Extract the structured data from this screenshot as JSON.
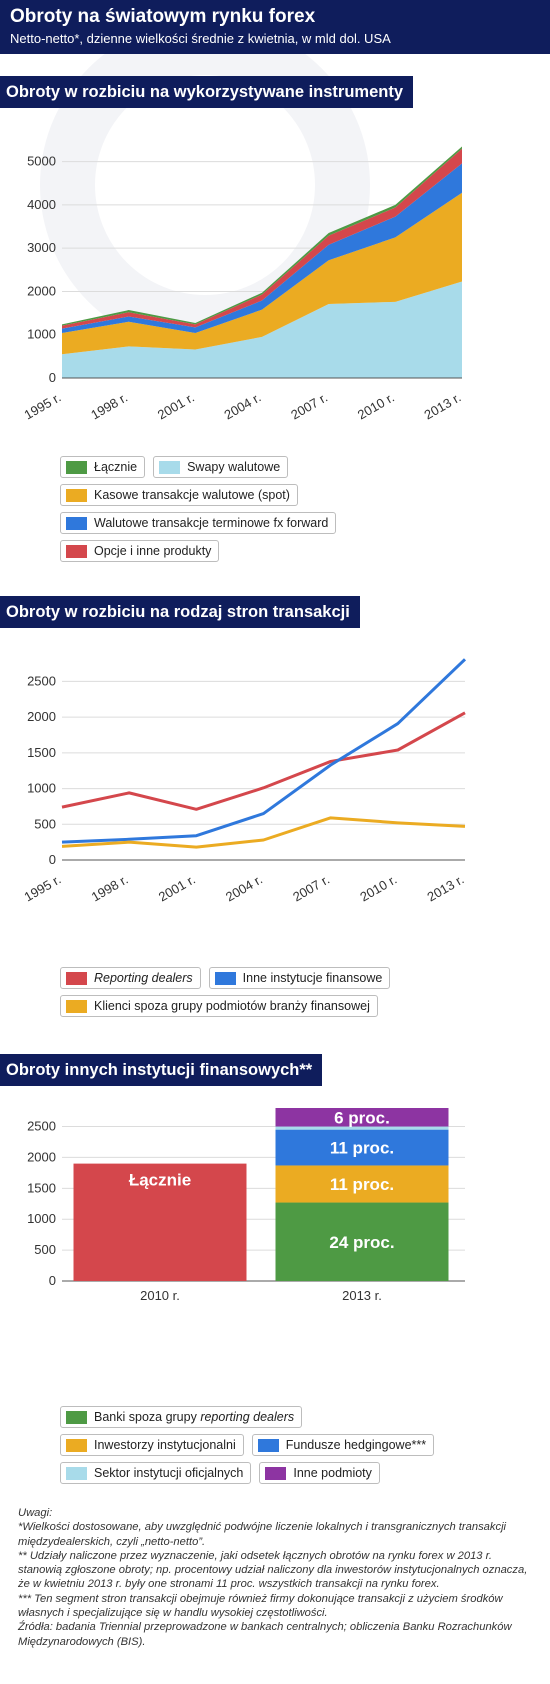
{
  "header": {
    "title": "Obroty na światowym rynku forex",
    "subtitle": "Netto-netto*, dzienne wielkości średnie z kwietnia, w mld dol. USA"
  },
  "section1": {
    "title": "Obroty w rozbiciu na wykorzystywane instrumenty"
  },
  "section2": {
    "title": "Obroty w rozbiciu na rodzaj stron transakcji"
  },
  "section3": {
    "title": "Obroty innych instytucji finansowych**"
  },
  "colors": {
    "navy": "#0f1d5c",
    "green": "#4e9a44",
    "light_blue": "#a8dbea",
    "orange": "#ebab22",
    "blue": "#2f78dc",
    "red": "#d4474c",
    "purple": "#8d34a2"
  },
  "chart_data": [
    {
      "type": "area",
      "x": [
        "1995 r.",
        "1998 r.",
        "2001 r.",
        "2004 r.",
        "2007 r.",
        "2010 r.",
        "2013 r."
      ],
      "ylim": [
        0,
        5500
      ],
      "yticks": [
        0,
        1000,
        2000,
        3000,
        4000,
        5000
      ],
      "stacked": true,
      "series": [
        {
          "name": "Swapy walutowe",
          "color": "#a8dbea",
          "values": [
            550,
            730,
            660,
            950,
            1710,
            1760,
            2230
          ]
        },
        {
          "name": "Kasowe transakcje walutowe (spot)",
          "color": "#ebab22",
          "values": [
            490,
            570,
            380,
            630,
            1010,
            1490,
            2050
          ]
        },
        {
          "name": "Walutowe transakcje terminowe fx forward",
          "color": "#2f78dc",
          "values": [
            100,
            120,
            130,
            210,
            360,
            480,
            680
          ]
        },
        {
          "name": "Opcje i inne produkty",
          "color": "#d4474c",
          "values": [
            70,
            100,
            70,
            140,
            210,
            210,
            340
          ]
        },
        {
          "name": "Łącznie",
          "color": "#4e9a44",
          "values": [
            30,
            50,
            30,
            40,
            60,
            60,
            50
          ]
        }
      ],
      "legend": [
        [
          {
            "label": "Łącznie",
            "color": "#4e9a44"
          },
          {
            "label": "Swapy walutowe",
            "color": "#a8dbea"
          }
        ],
        [
          {
            "label": "Kasowe transakcje walutowe (spot)",
            "color": "#ebab22"
          }
        ],
        [
          {
            "label": "Walutowe transakcje terminowe fx forward",
            "color": "#2f78dc"
          }
        ],
        [
          {
            "label": "Opcje i inne produkty",
            "color": "#d4474c"
          }
        ]
      ]
    },
    {
      "type": "line",
      "x": [
        "1995 r.",
        "1998 r.",
        "2001 r.",
        "2004 r.",
        "2007 r.",
        "2010 r.",
        "2013 r."
      ],
      "ylim": [
        0,
        2800
      ],
      "yticks": [
        0,
        500,
        1000,
        1500,
        2000,
        2500
      ],
      "series": [
        {
          "name": "Reporting dealers",
          "color": "#d4474c",
          "values": [
            740,
            940,
            710,
            1010,
            1380,
            1540,
            2060
          ]
        },
        {
          "name": "Inne instytucje finansowe",
          "color": "#2f78dc",
          "values": [
            250,
            290,
            340,
            650,
            1330,
            1910,
            2810
          ]
        },
        {
          "name": "Klienci spoza grupy podmiotów branży finansowej",
          "color": "#ebab22",
          "values": [
            190,
            250,
            180,
            280,
            590,
            520,
            470
          ]
        }
      ],
      "legend": [
        [
          {
            "label": "Reporting dealers",
            "color": "#d4474c",
            "italic": true
          },
          {
            "label": "Inne instytucje finansowe",
            "color": "#2f78dc"
          }
        ],
        [
          {
            "label": "Klienci spoza grupy podmiotów branży finansowej",
            "color": "#ebab22"
          }
        ]
      ]
    },
    {
      "type": "bar",
      "categories": [
        "2010 r.",
        "2013 r."
      ],
      "ylim": [
        0,
        2800
      ],
      "yticks": [
        0,
        500,
        1000,
        1500,
        2000,
        2500
      ],
      "bars": [
        {
          "category": "2010 r.",
          "segments": [
            {
              "name": "Łącznie",
              "value": 1900,
              "color": "#d4474c",
              "label": "Łącznie",
              "label_pos": "top"
            }
          ]
        },
        {
          "category": "2013 r.",
          "segments": [
            {
              "name": "Banki spoza grupy reporting dealers",
              "value": 1270,
              "color": "#4e9a44",
              "label": "24 proc."
            },
            {
              "name": "Inwestorzy instytucjonalni",
              "value": 600,
              "color": "#ebab22",
              "label": "11 proc."
            },
            {
              "name": "Fundusze hedgingowe***",
              "value": 580,
              "color": "#2f78dc",
              "label": "11 proc."
            },
            {
              "name": "Sektor instytucji oficjalnych",
              "value": 50,
              "color": "#a8dbea",
              "label": ""
            },
            {
              "name": "Inne podmioty",
              "value": 300,
              "color": "#8d34a2",
              "label": "6 proc."
            }
          ]
        }
      ],
      "legend": [
        [
          {
            "label": "Banki spoza grupy ",
            "label_italic": "reporting dealers",
            "color": "#4e9a44"
          }
        ],
        [
          {
            "label": "Inwestorzy instytucjonalni",
            "color": "#ebab22"
          },
          {
            "label": "Fundusze hedgingowe***",
            "color": "#2f78dc"
          }
        ],
        [
          {
            "label": "Sektor instytucji oficjalnych",
            "color": "#a8dbea"
          },
          {
            "label": "Inne podmioty",
            "color": "#8d34a2"
          }
        ]
      ]
    }
  ],
  "notes": [
    "Uwagi:",
    "*Wielkości dostosowane, aby uwzględnić podwójne liczenie lokalnych i transgranicznych transakcji międzydealerskich, czyli „netto-netto”.",
    "** Udziały naliczone przez wyznaczenie, jaki odsetek łącznych obrotów na rynku forex w 2013 r. stanowią zgłoszone obroty; np. procentowy udział naliczony dla inwestorów instytucjonalnych oznacza, że w kwietniu 2013 r. były one stronami 11 proc. wszystkich transakcji na rynku forex.",
    "*** Ten segment stron transakcji obejmuje również firmy dokonujące transakcji z użyciem środków własnych i specjalizujące się w handlu wysokiej częstotliwości.",
    "Źródła: badania Triennial przeprowadzone w bankach centralnych; obliczenia Banku Rozrachunków Międzynarodowych (BIS)."
  ]
}
